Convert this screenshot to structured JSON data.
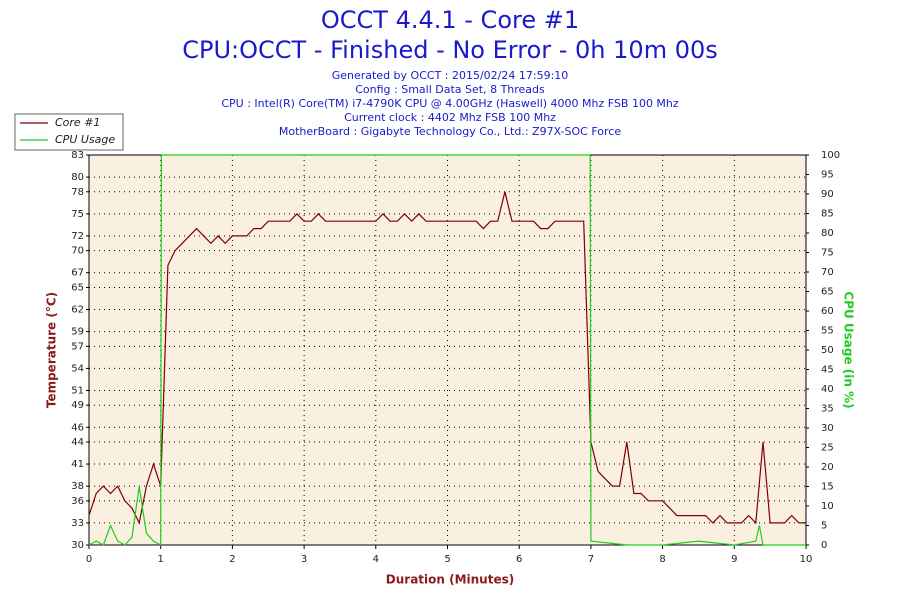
{
  "chart_data": {
    "type": "line",
    "title": "OCCT 4.4.1 - Core #1",
    "subtitle": "CPU:OCCT - Finished - No Error - 0h 10m 00s",
    "info": [
      "Generated by OCCT : 2015/02/24 17:59:10",
      "Config : Small Data Set, 8 Threads",
      "CPU : Intel(R) Core(TM) i7-4790K CPU @ 4.00GHz (Haswell) 4000 Mhz FSB 100 Mhz",
      "Current clock : 4402 Mhz FSB 100 Mhz",
      "MotherBoard : Gigabyte Technology Co., Ltd.: Z97X-SOC Force"
    ],
    "xlabel": "Duration (Minutes)",
    "ylabel": "Temperature (°C)",
    "y2label": "CPU Usage (in %)",
    "xlim": [
      0,
      10
    ],
    "xticks": [
      0,
      1,
      2,
      3,
      4,
      5,
      6,
      7,
      8,
      9,
      10
    ],
    "ylim": [
      30,
      83
    ],
    "yticks": [
      30,
      33,
      36,
      38,
      41,
      44,
      46,
      49,
      51,
      54,
      57,
      59,
      62,
      65,
      67,
      70,
      72,
      75,
      78,
      80,
      83
    ],
    "y2lim": [
      0,
      100
    ],
    "y2ticks": [
      0,
      5,
      10,
      15,
      20,
      25,
      30,
      35,
      40,
      45,
      50,
      55,
      60,
      65,
      70,
      75,
      80,
      85,
      90,
      95,
      100
    ],
    "grid": true,
    "legend": "top-left",
    "series": [
      {
        "name": "Core #1",
        "color": "#800000",
        "x": [
          0,
          0.1,
          0.2,
          0.3,
          0.4,
          0.5,
          0.6,
          0.7,
          0.8,
          0.9,
          1.0,
          1.1,
          1.2,
          1.3,
          1.4,
          1.5,
          1.6,
          1.7,
          1.8,
          1.9,
          2.0,
          2.1,
          2.2,
          2.3,
          2.4,
          2.5,
          2.6,
          2.7,
          2.8,
          2.9,
          3.0,
          3.1,
          3.2,
          3.3,
          3.4,
          3.5,
          3.6,
          3.7,
          3.8,
          3.9,
          4.0,
          4.1,
          4.2,
          4.3,
          4.4,
          4.5,
          4.6,
          4.7,
          4.8,
          4.9,
          5.0,
          5.1,
          5.2,
          5.3,
          5.4,
          5.5,
          5.6,
          5.7,
          5.8,
          5.9,
          6.0,
          6.1,
          6.2,
          6.3,
          6.4,
          6.5,
          6.6,
          6.7,
          6.8,
          6.9,
          7.0,
          7.1,
          7.2,
          7.3,
          7.4,
          7.5,
          7.6,
          7.7,
          7.8,
          7.9,
          8.0,
          8.1,
          8.2,
          8.3,
          8.4,
          8.5,
          8.6,
          8.7,
          8.8,
          8.9,
          9.0,
          9.1,
          9.2,
          9.3,
          9.4,
          9.5,
          9.6,
          9.7,
          9.8,
          9.9,
          10.0
        ],
        "values": [
          34,
          37,
          38,
          37,
          38,
          36,
          35,
          33,
          38,
          41,
          38,
          68,
          70,
          71,
          72,
          73,
          72,
          71,
          72,
          71,
          72,
          72,
          72,
          73,
          73,
          74,
          74,
          74,
          74,
          75,
          74,
          74,
          75,
          74,
          74,
          74,
          74,
          74,
          74,
          74,
          74,
          75,
          74,
          74,
          75,
          74,
          75,
          74,
          74,
          74,
          74,
          74,
          74,
          74,
          74,
          73,
          74,
          74,
          78,
          74,
          74,
          74,
          74,
          73,
          73,
          74,
          74,
          74,
          74,
          74,
          44,
          40,
          39,
          38,
          38,
          44,
          37,
          37,
          36,
          36,
          36,
          35,
          34,
          34,
          34,
          34,
          34,
          33,
          34,
          33,
          33,
          33,
          34,
          33,
          44,
          33,
          33,
          33,
          34,
          33,
          33
        ]
      },
      {
        "name": "CPU Usage",
        "color": "#22cc22",
        "axis": "y2",
        "x": [
          0,
          0.1,
          0.2,
          0.3,
          0.4,
          0.5,
          0.6,
          0.7,
          0.8,
          0.9,
          1.0,
          1.01,
          6.99,
          7.0,
          7.5,
          8.0,
          8.5,
          9.0,
          9.3,
          9.35,
          9.4,
          10.0
        ],
        "values": [
          0,
          1,
          0,
          5,
          1,
          0,
          2,
          15,
          3,
          1,
          0,
          100,
          100,
          1,
          0,
          0,
          1,
          0,
          1,
          5,
          0,
          0
        ]
      }
    ]
  }
}
